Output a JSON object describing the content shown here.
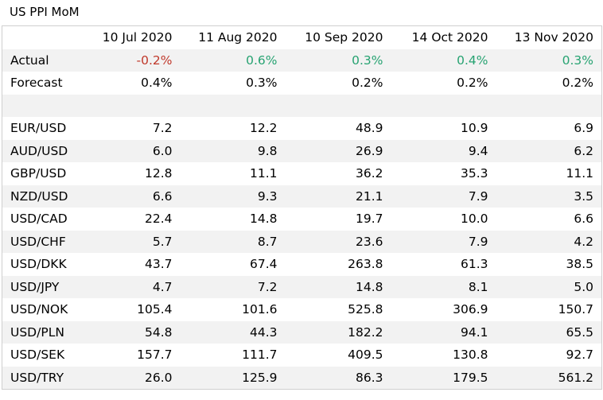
{
  "chart_data": {
    "type": "table",
    "title": "US PPI MoM",
    "columns": [
      "10 Jul 2020",
      "11 Aug 2020",
      "10 Sep 2020",
      "14 Oct 2020",
      "13 Nov 2020"
    ],
    "colors": {
      "negative": "#c0392b",
      "positive": "#27a372",
      "stripe": "#f2f2f2"
    },
    "actual": {
      "label": "Actual",
      "values": [
        "-0.2%",
        "0.6%",
        "0.3%",
        "0.4%",
        "0.3%"
      ],
      "signs": [
        "neg",
        "pos",
        "pos",
        "pos",
        "pos"
      ]
    },
    "forecast": {
      "label": "Forecast",
      "values": [
        "0.4%",
        "0.3%",
        "0.2%",
        "0.2%",
        "0.2%"
      ]
    },
    "rows": [
      {
        "label": "EUR/USD",
        "values": [
          "7.2",
          "12.2",
          "48.9",
          "10.9",
          "6.9"
        ]
      },
      {
        "label": "AUD/USD",
        "values": [
          "6.0",
          "9.8",
          "26.9",
          "9.4",
          "6.2"
        ]
      },
      {
        "label": "GBP/USD",
        "values": [
          "12.8",
          "11.1",
          "36.2",
          "35.3",
          "11.1"
        ]
      },
      {
        "label": "NZD/USD",
        "values": [
          "6.6",
          "9.3",
          "21.1",
          "7.9",
          "3.5"
        ]
      },
      {
        "label": "USD/CAD",
        "values": [
          "22.4",
          "14.8",
          "19.7",
          "10.0",
          "6.6"
        ]
      },
      {
        "label": "USD/CHF",
        "values": [
          "5.7",
          "8.7",
          "23.6",
          "7.9",
          "4.2"
        ]
      },
      {
        "label": "USD/DKK",
        "values": [
          "43.7",
          "67.4",
          "263.8",
          "61.3",
          "38.5"
        ]
      },
      {
        "label": "USD/JPY",
        "values": [
          "4.7",
          "7.2",
          "14.8",
          "8.1",
          "5.0"
        ]
      },
      {
        "label": "USD/NOK",
        "values": [
          "105.4",
          "101.6",
          "525.8",
          "306.9",
          "150.7"
        ]
      },
      {
        "label": "USD/PLN",
        "values": [
          "54.8",
          "44.3",
          "182.2",
          "94.1",
          "65.5"
        ]
      },
      {
        "label": "USD/SEK",
        "values": [
          "157.7",
          "111.7",
          "409.5",
          "130.8",
          "92.7"
        ]
      },
      {
        "label": "USD/TRY",
        "values": [
          "26.0",
          "125.9",
          "86.3",
          "179.5",
          "561.2"
        ]
      }
    ]
  }
}
